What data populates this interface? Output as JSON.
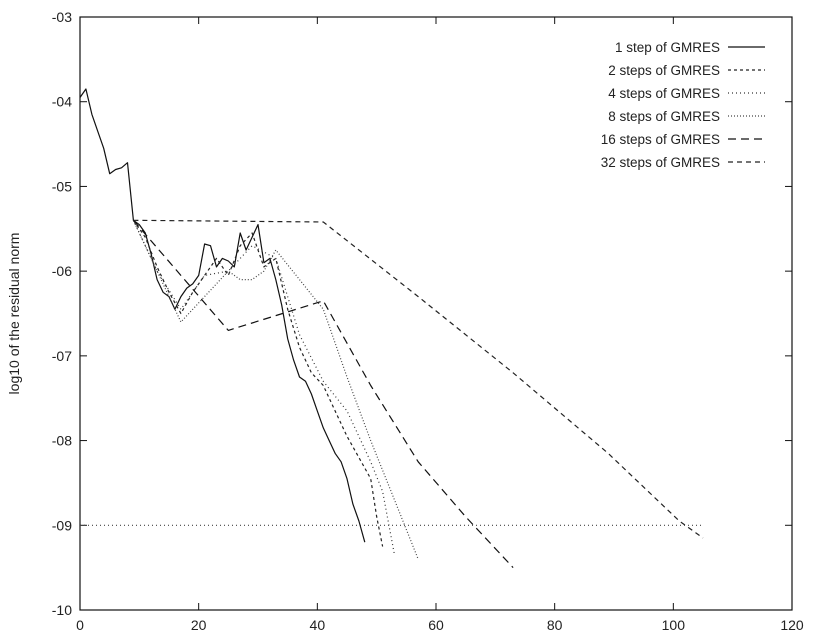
{
  "chart_data": {
    "type": "line",
    "title": "",
    "xlabel": "",
    "ylabel": "log10 of the residual norm",
    "xlim": [
      0,
      120
    ],
    "ylim": [
      -10,
      -3
    ],
    "x_ticks": [
      0,
      20,
      40,
      60,
      80,
      100,
      120
    ],
    "x_tick_labels": [
      "0",
      "20",
      "40",
      "60",
      "80",
      "100",
      "120"
    ],
    "y_ticks": [
      -10,
      -9,
      -8,
      -7,
      -6,
      -5,
      -4,
      -3
    ],
    "y_tick_labels": [
      "-10",
      "-09",
      "-08",
      "-07",
      "-06",
      "-05",
      "-04",
      "-03"
    ],
    "grid": false,
    "legend_position": "top-right",
    "reference_line": {
      "y": -9,
      "x_range": [
        0,
        105
      ]
    },
    "series": [
      {
        "name": "1 step of GMRES",
        "color": "#111111",
        "dash": "",
        "points": [
          [
            0,
            -3.95
          ],
          [
            1,
            -3.85
          ],
          [
            2,
            -4.15
          ],
          [
            3,
            -4.35
          ],
          [
            4,
            -4.55
          ],
          [
            5,
            -4.85
          ],
          [
            6,
            -4.8
          ],
          [
            7,
            -4.78
          ],
          [
            8,
            -4.72
          ],
          [
            9,
            -5.4
          ],
          [
            10,
            -5.45
          ],
          [
            11,
            -5.55
          ],
          [
            12,
            -5.8
          ],
          [
            13,
            -6.1
          ],
          [
            14,
            -6.25
          ],
          [
            15,
            -6.3
          ],
          [
            16,
            -6.45
          ],
          [
            17,
            -6.3
          ],
          [
            18,
            -6.2
          ],
          [
            19,
            -6.15
          ],
          [
            20,
            -6.05
          ],
          [
            21,
            -5.68
          ],
          [
            22,
            -5.7
          ],
          [
            23,
            -5.95
          ],
          [
            24,
            -5.85
          ],
          [
            25,
            -5.88
          ],
          [
            26,
            -5.95
          ],
          [
            27,
            -5.55
          ],
          [
            28,
            -5.75
          ],
          [
            29,
            -5.6
          ],
          [
            30,
            -5.45
          ],
          [
            31,
            -5.9
          ],
          [
            32,
            -5.85
          ],
          [
            33,
            -6.1
          ],
          [
            34,
            -6.4
          ],
          [
            35,
            -6.8
          ],
          [
            36,
            -7.05
          ],
          [
            37,
            -7.25
          ],
          [
            38,
            -7.3
          ],
          [
            39,
            -7.45
          ],
          [
            40,
            -7.65
          ],
          [
            41,
            -7.85
          ],
          [
            42,
            -8.0
          ],
          [
            43,
            -8.15
          ],
          [
            44,
            -8.25
          ],
          [
            45,
            -8.45
          ],
          [
            46,
            -8.75
          ],
          [
            47,
            -8.95
          ],
          [
            48,
            -9.2
          ]
        ]
      },
      {
        "name": "2 steps of GMRES",
        "color": "#222222",
        "dash": "3,3",
        "points": [
          [
            9,
            -5.4
          ],
          [
            11,
            -5.6
          ],
          [
            13,
            -5.95
          ],
          [
            15,
            -6.25
          ],
          [
            17,
            -6.5
          ],
          [
            19,
            -6.25
          ],
          [
            21,
            -6.05
          ],
          [
            23,
            -5.85
          ],
          [
            25,
            -6.05
          ],
          [
            27,
            -5.7
          ],
          [
            29,
            -5.55
          ],
          [
            31,
            -5.95
          ],
          [
            33,
            -5.85
          ],
          [
            35,
            -6.45
          ],
          [
            37,
            -6.9
          ],
          [
            39,
            -7.2
          ],
          [
            41,
            -7.35
          ],
          [
            43,
            -7.65
          ],
          [
            45,
            -7.95
          ],
          [
            47,
            -8.2
          ],
          [
            49,
            -8.45
          ],
          [
            50,
            -8.9
          ],
          [
            51,
            -9.25
          ]
        ]
      },
      {
        "name": "4 steps of GMRES",
        "color": "#333333",
        "dash": "1,3",
        "points": [
          [
            9,
            -5.4
          ],
          [
            13,
            -6.0
          ],
          [
            17,
            -6.45
          ],
          [
            21,
            -6.05
          ],
          [
            25,
            -6.0
          ],
          [
            29,
            -5.7
          ],
          [
            33,
            -5.85
          ],
          [
            37,
            -6.75
          ],
          [
            41,
            -7.3
          ],
          [
            45,
            -7.65
          ],
          [
            49,
            -8.25
          ],
          [
            51,
            -8.6
          ],
          [
            53,
            -9.35
          ]
        ]
      },
      {
        "name": "8 steps of GMRES",
        "color": "#444444",
        "dash": "1,2",
        "points": [
          [
            9,
            -5.4
          ],
          [
            17,
            -6.6
          ],
          [
            25,
            -6.0
          ],
          [
            27,
            -6.1
          ],
          [
            29,
            -6.1
          ],
          [
            31,
            -6.0
          ],
          [
            33,
            -5.75
          ],
          [
            41,
            -6.45
          ],
          [
            45,
            -7.25
          ],
          [
            49,
            -8.0
          ],
          [
            53,
            -8.7
          ],
          [
            57,
            -9.4
          ]
        ]
      },
      {
        "name": "16 steps of GMRES",
        "color": "#111111",
        "dash": "8,5",
        "points": [
          [
            9,
            -5.4
          ],
          [
            25,
            -6.7
          ],
          [
            41,
            -6.35
          ],
          [
            49,
            -7.35
          ],
          [
            57,
            -8.25
          ],
          [
            65,
            -8.9
          ],
          [
            73,
            -9.5
          ]
        ]
      },
      {
        "name": "32 steps of GMRES",
        "color": "#222222",
        "dash": "5,4",
        "points": [
          [
            9,
            -5.4
          ],
          [
            41,
            -5.42
          ],
          [
            57,
            -6.3
          ],
          [
            73,
            -7.2
          ],
          [
            89,
            -8.15
          ],
          [
            101,
            -8.95
          ],
          [
            105,
            -9.15
          ]
        ]
      }
    ]
  }
}
